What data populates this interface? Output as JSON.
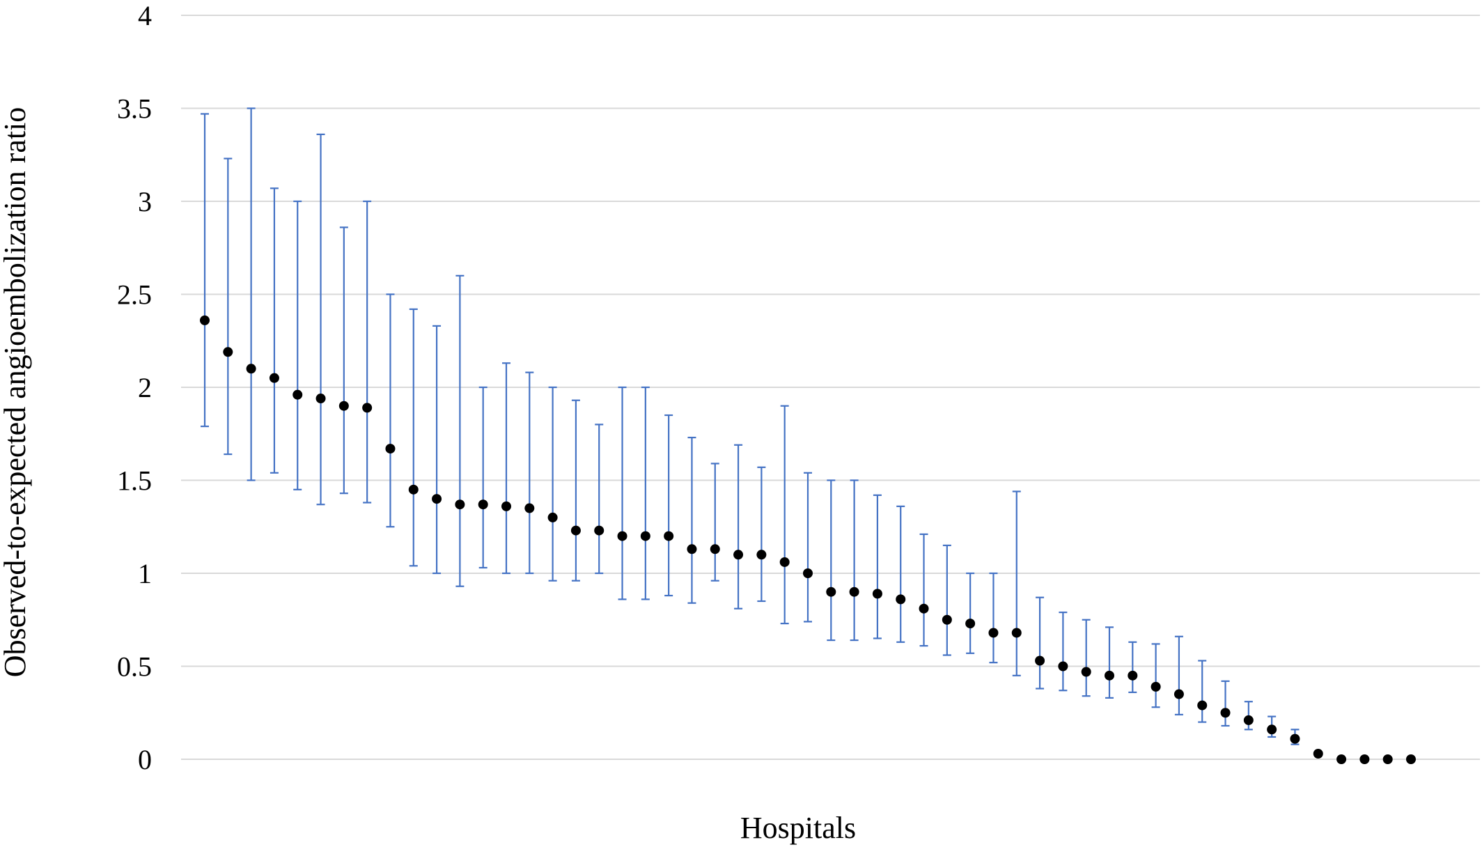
{
  "chart_data": {
    "type": "scatter",
    "title": "",
    "xlabel": "Hospitals",
    "ylabel": "Observed-to-expected angioembolization ratio",
    "ylim": [
      0,
      4
    ],
    "y_ticks": [
      0,
      0.5,
      1,
      1.5,
      2,
      2.5,
      3,
      3.5,
      4
    ],
    "y_tick_labels": [
      "0",
      "0.5",
      "1",
      "1.5",
      "2",
      "2.5",
      "3",
      "3.5",
      "4"
    ],
    "grid": true,
    "legend": "none",
    "colors": {
      "point": "#000000",
      "error_bar": "#4472c4",
      "grid": "#d9d9d9"
    },
    "series": [
      {
        "values": [
          2.36,
          2.19,
          2.1,
          2.05,
          1.96,
          1.94,
          1.9,
          1.89,
          1.67,
          1.45,
          1.4,
          1.37,
          1.37,
          1.36,
          1.35,
          1.3,
          1.23,
          1.23,
          1.2,
          1.2,
          1.2,
          1.13,
          1.13,
          1.1,
          1.1,
          1.06,
          1.0,
          0.9,
          0.9,
          0.89,
          0.86,
          0.81,
          0.75,
          0.73,
          0.68,
          0.68,
          0.53,
          0.5,
          0.47,
          0.45,
          0.45,
          0.39,
          0.35,
          0.29,
          0.25,
          0.21,
          0.16,
          0.11,
          0.03,
          0.0,
          0.0,
          0.0,
          0.0
        ],
        "lower": [
          1.79,
          1.64,
          1.5,
          1.54,
          1.45,
          1.37,
          1.43,
          1.38,
          1.25,
          1.04,
          1.0,
          0.93,
          1.03,
          1.0,
          1.0,
          0.96,
          0.96,
          1.0,
          0.86,
          0.86,
          0.88,
          0.84,
          0.96,
          0.81,
          0.85,
          0.73,
          0.74,
          0.64,
          0.64,
          0.65,
          0.63,
          0.61,
          0.56,
          0.57,
          0.52,
          0.45,
          0.38,
          0.37,
          0.34,
          0.33,
          0.36,
          0.28,
          0.24,
          0.2,
          0.18,
          0.16,
          0.12,
          0.08,
          0.02,
          null,
          null,
          null,
          null
        ],
        "upper": [
          3.47,
          3.23,
          3.5,
          3.07,
          3.0,
          3.36,
          2.86,
          3.0,
          2.5,
          2.42,
          2.33,
          2.6,
          2.0,
          2.13,
          2.08,
          2.0,
          1.93,
          1.8,
          2.0,
          2.0,
          1.85,
          1.73,
          1.59,
          1.69,
          1.57,
          1.9,
          1.54,
          1.5,
          1.5,
          1.42,
          1.36,
          1.21,
          1.15,
          1.0,
          1.0,
          1.44,
          0.87,
          0.79,
          0.75,
          0.71,
          0.63,
          0.62,
          0.66,
          0.53,
          0.42,
          0.31,
          0.23,
          0.16,
          0.04,
          null,
          null,
          null,
          null
        ]
      }
    ]
  }
}
